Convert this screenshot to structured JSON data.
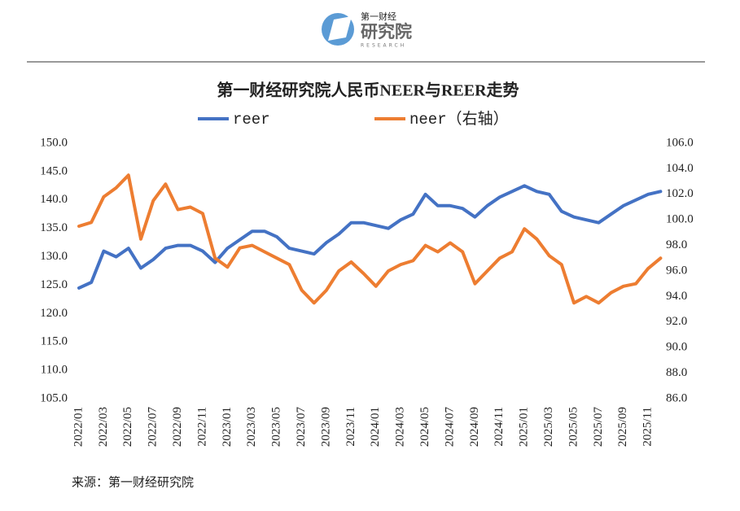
{
  "logo": {
    "top": "第一财经",
    "main": "研究院",
    "sub": "RESEARCH"
  },
  "source": "来源：第一财经研究院",
  "chart_data": {
    "type": "line",
    "title": "第一财经研究院人民币NEER与REER走势",
    "categories": [
      "2022/01",
      null,
      "2022/03",
      null,
      "2022/05",
      null,
      "2022/07",
      null,
      "2022/09",
      null,
      "2022/11",
      null,
      "2023/01",
      null,
      "2023/03",
      null,
      "2023/05",
      null,
      "2023/07",
      null,
      "2023/09",
      null,
      "2023/11",
      null,
      "2024/01",
      null,
      "2024/03",
      null,
      "2024/05",
      null,
      "2024/07",
      null,
      "2024/09",
      null,
      "2024/11",
      null,
      "2025/01",
      null,
      "2025/03",
      null,
      "2025/05",
      null,
      "2025/07",
      null,
      "2025/09",
      null,
      "2025/11",
      null
    ],
    "series": [
      {
        "name": "reer",
        "color": "#4472c4",
        "axis": "y",
        "values": [
          124.5,
          125.5,
          131,
          130,
          131.5,
          128,
          129.5,
          131.5,
          132,
          132,
          131,
          129,
          131.5,
          133,
          134.5,
          134.5,
          133.5,
          131.5,
          131,
          130.5,
          132.5,
          134,
          136,
          136,
          135.5,
          135,
          136.5,
          137.5,
          141,
          139,
          139,
          138.5,
          137,
          139,
          140.5,
          141.5,
          142.5,
          141.5,
          141,
          138,
          137,
          136.5,
          136,
          137.5,
          139,
          140,
          141,
          141.5
        ]
      },
      {
        "name": "neer（右轴）",
        "color": "#ed7d31",
        "axis": "y2",
        "values": [
          99.5,
          99.8,
          101.8,
          102.5,
          103.5,
          98.5,
          101.5,
          102.8,
          100.8,
          101,
          100.5,
          97,
          96.3,
          97.8,
          98,
          97.5,
          97,
          96.5,
          94.5,
          93.5,
          94.5,
          96,
          96.7,
          95.8,
          94.8,
          96,
          96.5,
          96.8,
          98,
          97.5,
          98.2,
          97.5,
          95,
          96,
          97,
          97.5,
          99.3,
          98.5,
          97.2,
          96.5,
          93.5,
          94,
          93.5,
          94.3,
          94.8,
          95,
          96.2,
          97
        ]
      }
    ],
    "ylim": [
      105,
      150
    ],
    "yticks": [
      {
        "value": 105,
        "label": "105.0"
      },
      {
        "value": 110,
        "label": "110.0"
      },
      {
        "value": 115,
        "label": "115.0"
      },
      {
        "value": 120,
        "label": "120.0"
      },
      {
        "value": 125,
        "label": "125.0"
      },
      {
        "value": 130,
        "label": "130.0"
      },
      {
        "value": 135,
        "label": "135.0"
      },
      {
        "value": 140,
        "label": "140.0"
      },
      {
        "value": 145,
        "label": "145.0"
      },
      {
        "value": 150,
        "label": "150.0"
      }
    ],
    "y2lim": [
      86,
      106
    ],
    "y2ticks": [
      {
        "value": 86,
        "label": "86.0"
      },
      {
        "value": 88,
        "label": "88.0"
      },
      {
        "value": 90,
        "label": "90.0"
      },
      {
        "value": 92,
        "label": "92.0"
      },
      {
        "value": 94,
        "label": "94.0"
      },
      {
        "value": 96,
        "label": "96.0"
      },
      {
        "value": 98,
        "label": "98.0"
      },
      {
        "value": 100,
        "label": "100.0"
      },
      {
        "value": 102,
        "label": "102.0"
      },
      {
        "value": 104,
        "label": "104.0"
      },
      {
        "value": 106,
        "label": "106.0"
      }
    ],
    "grid": false
  }
}
